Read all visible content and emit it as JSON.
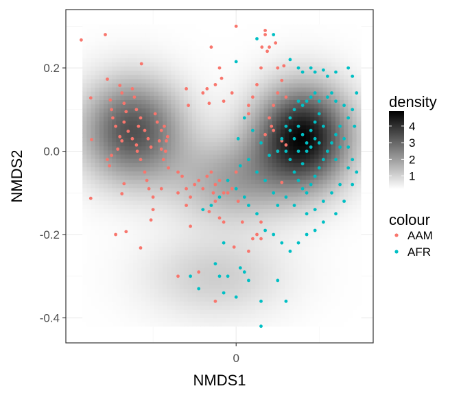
{
  "chart_data": {
    "type": "scatter",
    "title": "",
    "xlabel": "NMDS1",
    "ylabel": "NMDS2",
    "xlim": [
      -0.41,
      0.33
    ],
    "ylim": [
      -0.46,
      0.34
    ],
    "x_ticks": [
      {
        "value": 0,
        "label": "0"
      }
    ],
    "y_ticks": [
      {
        "value": 0.2,
        "label": "0.2"
      },
      {
        "value": 0.0,
        "label": "0.0"
      },
      {
        "value": -0.2,
        "label": "-0.2"
      },
      {
        "value": -0.4,
        "label": "-0.4"
      }
    ],
    "grid": true,
    "density_layer": {
      "legend_title": "density",
      "legend_ticks": [
        {
          "value": 4,
          "label": "4"
        },
        {
          "value": 3,
          "label": "3"
        },
        {
          "value": 2,
          "label": "2"
        },
        {
          "value": 1,
          "label": "1"
        }
      ],
      "range": [
        0.2,
        4.9
      ],
      "extent_x": [
        -0.37,
        0.3
      ],
      "extent_y": [
        -0.42,
        0.305
      ],
      "low_color": "#ffffff",
      "high_color": "#000000",
      "modes": [
        {
          "x": -0.25,
          "y": 0.05,
          "sx": 0.085,
          "sy": 0.085,
          "w": 3.2
        },
        {
          "x": 0.16,
          "y": 0.035,
          "sx": 0.08,
          "sy": 0.085,
          "w": 4.5
        },
        {
          "x": -0.01,
          "y": -0.07,
          "sx": 0.1,
          "sy": 0.07,
          "w": 1.6
        },
        {
          "x": -0.05,
          "y": -0.3,
          "sx": 0.12,
          "sy": 0.07,
          "w": 0.9
        }
      ]
    },
    "legend_title": "colour",
    "series": [
      {
        "name": "AAM",
        "color": "#F8766D",
        "points": [
          [
            -0.373,
            0.267
          ],
          [
            -0.315,
            0.28
          ],
          [
            -0.35,
            0.128
          ],
          [
            -0.348,
            0.028
          ],
          [
            -0.35,
            -0.113
          ],
          [
            -0.31,
            0.173
          ],
          [
            -0.303,
            0.123
          ],
          [
            -0.3,
            0.1
          ],
          [
            -0.297,
            0.08
          ],
          [
            -0.29,
            0.06
          ],
          [
            -0.28,
            0.158
          ],
          [
            -0.275,
            0.14
          ],
          [
            -0.27,
            0.115
          ],
          [
            -0.265,
            0.095
          ],
          [
            -0.27,
            0.07
          ],
          [
            -0.275,
            0.025
          ],
          [
            -0.28,
            0.035
          ],
          [
            -0.285,
            0.005
          ],
          [
            -0.25,
            0.15
          ],
          [
            -0.245,
            0.13
          ],
          [
            -0.24,
            0.1
          ],
          [
            -0.23,
            0.08
          ],
          [
            -0.235,
            0.06
          ],
          [
            -0.26,
            0.048
          ],
          [
            -0.25,
            0.03
          ],
          [
            -0.24,
            0.015
          ],
          [
            -0.238,
            0.0
          ],
          [
            -0.23,
            -0.02
          ],
          [
            -0.22,
            -0.05
          ],
          [
            -0.215,
            -0.07
          ],
          [
            -0.21,
            -0.09
          ],
          [
            -0.2,
            -0.11
          ],
          [
            -0.2,
            -0.14
          ],
          [
            -0.18,
            -0.09
          ],
          [
            -0.19,
            0.07
          ],
          [
            -0.18,
            0.05
          ],
          [
            -0.185,
            0.025
          ],
          [
            -0.18,
            0.005
          ],
          [
            -0.175,
            -0.02
          ],
          [
            -0.17,
            0.0
          ],
          [
            -0.168,
            0.025
          ],
          [
            -0.165,
            0.035
          ],
          [
            -0.173,
            0.06
          ],
          [
            -0.163,
            -0.04
          ],
          [
            -0.205,
            0.01
          ],
          [
            -0.212,
            0.03
          ],
          [
            -0.22,
            0.05
          ],
          [
            -0.195,
            0.09
          ],
          [
            -0.3,
            -0.01
          ],
          [
            -0.31,
            -0.02
          ],
          [
            -0.305,
            -0.035
          ],
          [
            -0.205,
            -0.165
          ],
          [
            -0.265,
            -0.193
          ],
          [
            -0.27,
            -0.078
          ],
          [
            -0.29,
            -0.2
          ],
          [
            -0.275,
            -0.102
          ],
          [
            -0.23,
            -0.232
          ],
          [
            -0.228,
            0.21
          ],
          [
            -0.14,
            -0.05
          ],
          [
            -0.13,
            -0.06
          ],
          [
            -0.12,
            -0.09
          ],
          [
            -0.11,
            -0.11
          ],
          [
            -0.1,
            -0.08
          ],
          [
            -0.09,
            -0.07
          ],
          [
            -0.08,
            -0.09
          ],
          [
            -0.07,
            -0.06
          ],
          [
            -0.06,
            -0.05
          ],
          [
            -0.05,
            -0.08
          ],
          [
            -0.04,
            -0.07
          ],
          [
            -0.055,
            -0.1
          ],
          [
            -0.05,
            -0.12
          ],
          [
            -0.065,
            -0.145
          ],
          [
            -0.04,
            -0.16
          ],
          [
            -0.03,
            -0.1
          ],
          [
            -0.02,
            -0.1
          ],
          [
            -0.12,
            0.15
          ],
          [
            -0.115,
            0.11
          ],
          [
            -0.08,
            0.14
          ],
          [
            -0.07,
            0.15
          ],
          [
            -0.065,
            0.115
          ],
          [
            -0.06,
            0.25
          ],
          [
            -0.05,
            0.16
          ],
          [
            -0.04,
            0.2
          ],
          [
            -0.035,
            0.175
          ],
          [
            -0.03,
            0.12
          ],
          [
            -0.01,
            0.14
          ],
          [
            0.0,
            0.3
          ],
          [
            0.03,
            0.11
          ],
          [
            0.04,
            0.13
          ],
          [
            0.05,
            0.16
          ],
          [
            0.06,
            0.2
          ],
          [
            0.062,
            0.25
          ],
          [
            0.07,
            0.28
          ],
          [
            0.075,
            0.24
          ],
          [
            0.07,
            0.29
          ],
          [
            0.08,
            0.25
          ],
          [
            0.095,
            0.26
          ],
          [
            0.1,
            0.2
          ],
          [
            0.11,
            0.17
          ],
          [
            0.115,
            0.205
          ],
          [
            0.12,
            0.13
          ],
          [
            0.1,
            0.14
          ],
          [
            0.09,
            0.11
          ],
          [
            0.08,
            0.08
          ],
          [
            0.085,
            0.06
          ],
          [
            0.07,
            0.04
          ],
          [
            0.09,
            0.05
          ],
          [
            0.1,
            0.0
          ],
          [
            0.11,
            0.025
          ],
          [
            0.12,
            0.015
          ],
          [
            0.11,
            -0.075
          ],
          [
            0.03,
            0.09
          ],
          [
            0.0,
            -0.05
          ],
          [
            -0.01,
            -0.09
          ],
          [
            0.005,
            -0.12
          ],
          [
            0.015,
            -0.17
          ],
          [
            0.04,
            -0.21
          ],
          [
            0.03,
            -0.24
          ],
          [
            0.06,
            -0.17
          ],
          [
            0.05,
            -0.2
          ],
          [
            0.06,
            -0.21
          ],
          [
            -0.03,
            -0.17
          ],
          [
            -0.005,
            -0.23
          ],
          [
            -0.14,
            -0.3
          ],
          [
            -0.09,
            -0.29
          ],
          [
            -0.05,
            -0.36
          ],
          [
            -0.14,
            -0.1
          ],
          [
            -0.11,
            -0.18
          ],
          [
            -0.12,
            -0.13
          ]
        ]
      },
      {
        "name": "AFR",
        "color": "#00BFC4",
        "points": [
          [
            0.09,
            0.28
          ],
          [
            0.05,
            0.27
          ],
          [
            0.0,
            0.215
          ],
          [
            0.13,
            0.22
          ],
          [
            0.15,
            0.2
          ],
          [
            0.16,
            0.19
          ],
          [
            0.18,
            0.2
          ],
          [
            0.19,
            0.19
          ],
          [
            0.21,
            0.195
          ],
          [
            0.22,
            0.18
          ],
          [
            0.24,
            0.19
          ],
          [
            0.27,
            0.2
          ],
          [
            0.28,
            0.18
          ],
          [
            0.29,
            0.14
          ],
          [
            0.28,
            0.1
          ],
          [
            0.27,
            0.08
          ],
          [
            0.26,
            0.11
          ],
          [
            0.24,
            0.12
          ],
          [
            0.23,
            0.14
          ],
          [
            0.22,
            0.13
          ],
          [
            0.2,
            0.12
          ],
          [
            0.19,
            0.14
          ],
          [
            0.18,
            0.13
          ],
          [
            0.17,
            0.12
          ],
          [
            0.16,
            0.11
          ],
          [
            0.15,
            0.12
          ],
          [
            0.14,
            0.1
          ],
          [
            0.13,
            0.08
          ],
          [
            0.12,
            0.06
          ],
          [
            0.11,
            0.03
          ],
          [
            0.12,
            0.0
          ],
          [
            0.13,
            -0.02
          ],
          [
            0.14,
            -0.05
          ],
          [
            0.15,
            -0.07
          ],
          [
            0.16,
            -0.09
          ],
          [
            0.17,
            -0.1
          ],
          [
            0.18,
            -0.08
          ],
          [
            0.19,
            -0.06
          ],
          [
            0.2,
            -0.04
          ],
          [
            0.21,
            -0.02
          ],
          [
            0.22,
            0.0
          ],
          [
            0.23,
            0.02
          ],
          [
            0.24,
            0.04
          ],
          [
            0.25,
            0.06
          ],
          [
            0.26,
            0.03
          ],
          [
            0.27,
            0.01
          ],
          [
            0.28,
            -0.02
          ],
          [
            0.29,
            -0.05
          ],
          [
            0.28,
            -0.08
          ],
          [
            0.26,
            -0.12
          ],
          [
            0.24,
            -0.15
          ],
          [
            0.21,
            -0.17
          ],
          [
            0.19,
            -0.19
          ],
          [
            0.17,
            -0.2
          ],
          [
            0.15,
            -0.22
          ],
          [
            0.13,
            -0.24
          ],
          [
            0.11,
            -0.22
          ],
          [
            0.09,
            -0.2
          ],
          [
            0.07,
            -0.19
          ],
          [
            0.05,
            -0.15
          ],
          [
            0.03,
            -0.13
          ],
          [
            0.02,
            -0.11
          ],
          [
            0.0,
            -0.09
          ],
          [
            -0.02,
            -0.07
          ],
          [
            -0.04,
            -0.11
          ],
          [
            -0.06,
            -0.13
          ],
          [
            -0.08,
            -0.14
          ],
          [
            -0.03,
            -0.22
          ],
          [
            -0.05,
            -0.27
          ],
          [
            -0.04,
            -0.3
          ],
          [
            -0.02,
            -0.3
          ],
          [
            0.01,
            -0.28
          ],
          [
            0.02,
            -0.29
          ],
          [
            0.03,
            -0.31
          ],
          [
            0.0,
            -0.35
          ],
          [
            -0.03,
            -0.34
          ],
          [
            -0.09,
            -0.33
          ],
          [
            -0.11,
            -0.3
          ],
          [
            0.06,
            -0.36
          ],
          [
            0.1,
            -0.31
          ],
          [
            0.12,
            -0.36
          ],
          [
            0.06,
            -0.42
          ],
          [
            0.1,
            0.0
          ],
          [
            0.08,
            -0.01
          ],
          [
            0.06,
            0.02
          ],
          [
            0.04,
            0.05
          ],
          [
            0.02,
            0.08
          ],
          [
            0.005,
            0.03
          ],
          [
            0.01,
            -0.035
          ],
          [
            0.03,
            -0.02
          ],
          [
            0.05,
            -0.05
          ],
          [
            0.07,
            -0.07
          ],
          [
            0.09,
            -0.1
          ],
          [
            0.1,
            -0.13
          ],
          [
            0.12,
            -0.11
          ],
          [
            0.14,
            -0.13
          ],
          [
            0.17,
            -0.15
          ],
          [
            0.19,
            -0.14
          ],
          [
            0.21,
            -0.12
          ],
          [
            0.23,
            -0.1
          ],
          [
            0.25,
            -0.08
          ],
          [
            0.15,
            0.06
          ],
          [
            0.16,
            0.04
          ],
          [
            0.17,
            0.02
          ],
          [
            0.18,
            0.05
          ],
          [
            0.19,
            0.07
          ],
          [
            0.2,
            0.09
          ],
          [
            0.21,
            0.06
          ],
          [
            0.15,
            0.0
          ],
          [
            0.16,
            -0.03
          ],
          [
            0.17,
            0.0
          ],
          [
            0.18,
            0.01
          ],
          [
            0.19,
            0.03
          ],
          [
            0.2,
            0.02
          ],
          [
            0.24,
            -0.02
          ],
          [
            0.25,
            0.01
          ],
          [
            0.27,
            -0.04
          ],
          [
            0.14,
            0.03
          ],
          [
            0.13,
            0.05
          ],
          [
            0.285,
            0.06
          ]
        ]
      }
    ]
  }
}
